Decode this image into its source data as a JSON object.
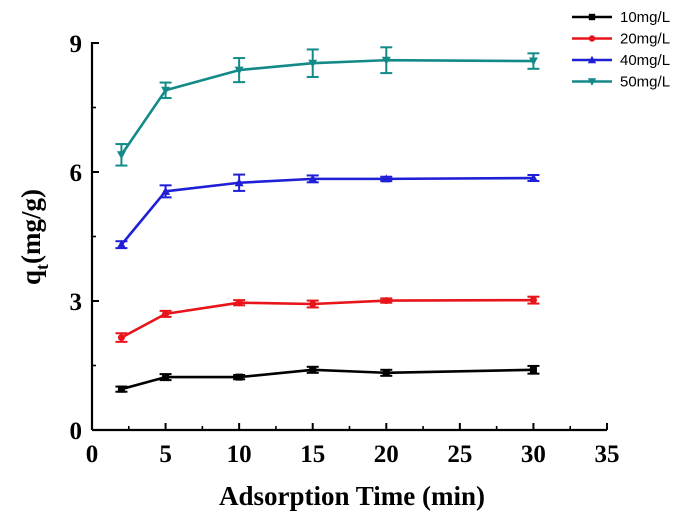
{
  "chart_data": {
    "type": "line",
    "xlabel": "Adsorption Time (min)",
    "ylabel": {
      "main": "q",
      "subscript": "t",
      "unit": "(mg/g)"
    },
    "xlim": [
      0,
      35
    ],
    "ylim": [
      0,
      9
    ],
    "xticks": [
      0,
      5,
      10,
      15,
      20,
      25,
      30,
      35
    ],
    "yticks": [
      0,
      3,
      6,
      9
    ],
    "grid": false,
    "legend_position": "top-right",
    "x": [
      2,
      5,
      10,
      15,
      20,
      30
    ],
    "series": [
      {
        "name": "10mg/L",
        "color": "#000000",
        "marker": "square",
        "values": [
          0.95,
          1.23,
          1.23,
          1.4,
          1.33,
          1.4
        ],
        "errors": [
          0.06,
          0.07,
          0.05,
          0.07,
          0.07,
          0.09
        ]
      },
      {
        "name": "20mg/L",
        "color": "#e8141b",
        "marker": "circle",
        "values": [
          2.15,
          2.7,
          2.96,
          2.93,
          3.01,
          3.02
        ],
        "errors": [
          0.1,
          0.07,
          0.06,
          0.08,
          0.05,
          0.08
        ]
      },
      {
        "name": "40mg/L",
        "color": "#1f1fd6",
        "marker": "triangle-up",
        "values": [
          4.31,
          5.55,
          5.75,
          5.84,
          5.84,
          5.86
        ],
        "errors": [
          0.08,
          0.14,
          0.19,
          0.08,
          0.05,
          0.07
        ]
      },
      {
        "name": "50mg/L",
        "color": "#138a88",
        "marker": "triangle-down",
        "values": [
          6.4,
          7.9,
          8.37,
          8.53,
          8.6,
          8.58
        ],
        "errors": [
          0.25,
          0.18,
          0.28,
          0.32,
          0.3,
          0.18
        ]
      }
    ]
  }
}
